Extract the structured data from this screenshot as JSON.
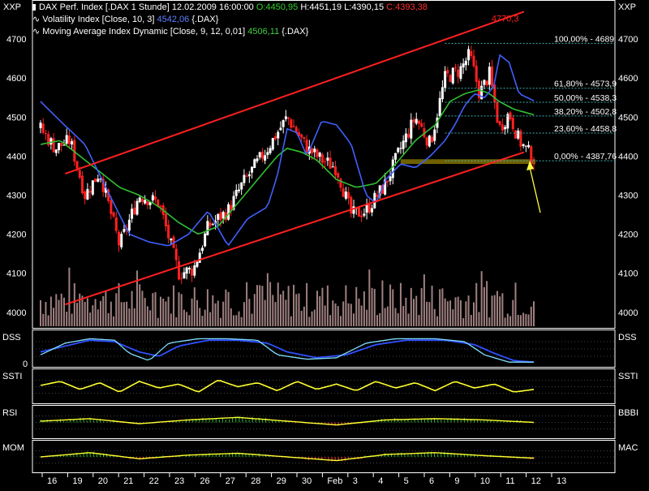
{
  "header": {
    "line1": {
      "instrument": "DAX Perf. Index [.DAX  1 Stunde]",
      "datetime": "12.02.2009 16:00:00",
      "open": "O:4450,95",
      "high": "H:4451,19",
      "low": "L:4390,15",
      "close": "C:4393,38"
    },
    "line2": {
      "label": "Volatility Index [Close, 10, 3]",
      "value": "4542,06",
      "suffix": "{.DAX}"
    },
    "line3": {
      "label": "Moving Average Index Dynamic [Close, 9, 12, 0,01]",
      "value": "4506,11",
      "suffix": "{.DAX}"
    }
  },
  "corner_labels": {
    "left": "XXP",
    "right": "XXP"
  },
  "colors": {
    "background": "#000000",
    "panel_border": "#ffffff",
    "up_candle": "#ffffff",
    "down_candle": "#ff2020",
    "channel": "#ff2020",
    "volatility": "#4060ff",
    "moving_average": "#30c030",
    "fib_line": "#40b0b0",
    "support_band": "#7a6a00",
    "arrow": "#ffff40",
    "volume": "#a08080"
  },
  "chart_data": [
    {
      "type": "candlestick",
      "name": "main",
      "ylim": [
        3960,
        4800
      ],
      "y_ticks": [
        4000,
        4100,
        4200,
        4300,
        4400,
        4500,
        4600,
        4700
      ],
      "tick_label_format": "integer",
      "x_tick_labels": [
        "16",
        "19",
        "20",
        "21",
        "22",
        "23",
        "26",
        "27",
        "28",
        "29",
        "30",
        "Feb",
        "3",
        "4",
        "5",
        "6",
        "9",
        "10",
        "11",
        "12",
        "13"
      ],
      "channel_label": "4770,3",
      "channel_upper": [
        [
          0.05,
          4355
        ],
        [
          0.98,
          4770
        ]
      ],
      "channel_lower": [
        [
          0.05,
          4020
        ],
        [
          0.98,
          4410
        ]
      ],
      "support_band": [
        4380,
        4392
      ],
      "fibonacci": [
        {
          "label": "100,00% - 4689",
          "value": 4689
        },
        {
          "label": "61,80% - 4573,9",
          "value": 4574
        },
        {
          "label": "50,00% - 4538,3",
          "value": 4538
        },
        {
          "label": "38,20% - 4502,8",
          "value": 4503
        },
        {
          "label": "23,60% - 4458,8",
          "value": 4459
        },
        {
          "label": "0,00% - 4387,76",
          "value": 4388
        }
      ],
      "close_anchors": [
        [
          0,
          4470
        ],
        [
          0.03,
          4420
        ],
        [
          0.06,
          4440
        ],
        [
          0.09,
          4300
        ],
        [
          0.12,
          4360
        ],
        [
          0.16,
          4170
        ],
        [
          0.2,
          4300
        ],
        [
          0.24,
          4280
        ],
        [
          0.28,
          4100
        ],
        [
          0.31,
          4110
        ],
        [
          0.34,
          4220
        ],
        [
          0.38,
          4260
        ],
        [
          0.41,
          4330
        ],
        [
          0.46,
          4420
        ],
        [
          0.5,
          4500
        ],
        [
          0.54,
          4420
        ],
        [
          0.57,
          4390
        ],
        [
          0.6,
          4370
        ],
        [
          0.63,
          4250
        ],
        [
          0.66,
          4260
        ],
        [
          0.7,
          4330
        ],
        [
          0.73,
          4420
        ],
        [
          0.76,
          4500
        ],
        [
          0.79,
          4430
        ],
        [
          0.82,
          4600
        ],
        [
          0.85,
          4620
        ],
        [
          0.87,
          4660
        ],
        [
          0.89,
          4560
        ],
        [
          0.91,
          4610
        ],
        [
          0.93,
          4470
        ],
        [
          0.95,
          4510
        ],
        [
          0.97,
          4440
        ],
        [
          1,
          4393
        ]
      ],
      "volatility_anchors": [
        [
          0,
          4540
        ],
        [
          0.04,
          4490
        ],
        [
          0.09,
          4430
        ],
        [
          0.14,
          4300
        ],
        [
          0.18,
          4200
        ],
        [
          0.22,
          4180
        ],
        [
          0.26,
          4170
        ],
        [
          0.3,
          4200
        ],
        [
          0.34,
          4260
        ],
        [
          0.38,
          4170
        ],
        [
          0.42,
          4240
        ],
        [
          0.46,
          4270
        ],
        [
          0.48,
          4350
        ],
        [
          0.5,
          4470
        ],
        [
          0.52,
          4460
        ],
        [
          0.54,
          4400
        ],
        [
          0.57,
          4490
        ],
        [
          0.6,
          4480
        ],
        [
          0.63,
          4430
        ],
        [
          0.66,
          4300
        ],
        [
          0.68,
          4280
        ],
        [
          0.7,
          4340
        ],
        [
          0.73,
          4380
        ],
        [
          0.76,
          4370
        ],
        [
          0.79,
          4400
        ],
        [
          0.82,
          4440
        ],
        [
          0.84,
          4480
        ],
        [
          0.86,
          4530
        ],
        [
          0.88,
          4560
        ],
        [
          0.9,
          4550
        ],
        [
          0.92,
          4580
        ],
        [
          0.93,
          4660
        ],
        [
          0.95,
          4640
        ],
        [
          0.97,
          4560
        ],
        [
          1,
          4542
        ]
      ],
      "ma_anchors": [
        [
          0,
          4430
        ],
        [
          0.04,
          4440
        ],
        [
          0.08,
          4400
        ],
        [
          0.12,
          4360
        ],
        [
          0.16,
          4320
        ],
        [
          0.2,
          4300
        ],
        [
          0.24,
          4270
        ],
        [
          0.28,
          4230
        ],
        [
          0.32,
          4200
        ],
        [
          0.36,
          4220
        ],
        [
          0.4,
          4280
        ],
        [
          0.44,
          4340
        ],
        [
          0.48,
          4400
        ],
        [
          0.5,
          4420
        ],
        [
          0.53,
          4410
        ],
        [
          0.56,
          4390
        ],
        [
          0.6,
          4340
        ],
        [
          0.64,
          4320
        ],
        [
          0.68,
          4330
        ],
        [
          0.72,
          4380
        ],
        [
          0.76,
          4440
        ],
        [
          0.8,
          4480
        ],
        [
          0.83,
          4540
        ],
        [
          0.86,
          4560
        ],
        [
          0.89,
          4570
        ],
        [
          0.91,
          4560
        ],
        [
          0.93,
          4540
        ],
        [
          0.96,
          4520
        ],
        [
          1,
          4506
        ]
      ]
    },
    {
      "type": "line",
      "name": "DSS",
      "left_label": "DSS",
      "right_label": "DSS",
      "ylim": [
        0,
        100
      ],
      "y_ticks": [
        0
      ],
      "line_a": [
        [
          0,
          30
        ],
        [
          0.05,
          70
        ],
        [
          0.1,
          85
        ],
        [
          0.15,
          80
        ],
        [
          0.18,
          35
        ],
        [
          0.22,
          10
        ],
        [
          0.26,
          70
        ],
        [
          0.32,
          85
        ],
        [
          0.38,
          85
        ],
        [
          0.44,
          80
        ],
        [
          0.48,
          30
        ],
        [
          0.54,
          15
        ],
        [
          0.6,
          20
        ],
        [
          0.66,
          70
        ],
        [
          0.72,
          85
        ],
        [
          0.8,
          85
        ],
        [
          0.86,
          75
        ],
        [
          0.9,
          30
        ],
        [
          0.95,
          5
        ],
        [
          1,
          5
        ]
      ],
      "line_b": [
        [
          0,
          40
        ],
        [
          0.05,
          60
        ],
        [
          0.1,
          80
        ],
        [
          0.15,
          75
        ],
        [
          0.2,
          40
        ],
        [
          0.24,
          25
        ],
        [
          0.28,
          60
        ],
        [
          0.34,
          80
        ],
        [
          0.4,
          80
        ],
        [
          0.46,
          70
        ],
        [
          0.5,
          40
        ],
        [
          0.56,
          20
        ],
        [
          0.62,
          30
        ],
        [
          0.68,
          65
        ],
        [
          0.74,
          80
        ],
        [
          0.82,
          80
        ],
        [
          0.88,
          65
        ],
        [
          0.92,
          35
        ],
        [
          0.96,
          10
        ],
        [
          1,
          5
        ]
      ]
    },
    {
      "type": "line",
      "name": "SSTI",
      "left_label": "SSTI",
      "right_label": "SSTI",
      "ylim": [
        0,
        100
      ],
      "line": [
        [
          0,
          55
        ],
        [
          0.04,
          70
        ],
        [
          0.08,
          40
        ],
        [
          0.12,
          65
        ],
        [
          0.16,
          30
        ],
        [
          0.2,
          70
        ],
        [
          0.24,
          45
        ],
        [
          0.28,
          60
        ],
        [
          0.32,
          30
        ],
        [
          0.36,
          75
        ],
        [
          0.4,
          50
        ],
        [
          0.44,
          65
        ],
        [
          0.48,
          35
        ],
        [
          0.52,
          70
        ],
        [
          0.56,
          40
        ],
        [
          0.6,
          60
        ],
        [
          0.64,
          35
        ],
        [
          0.68,
          70
        ],
        [
          0.72,
          45
        ],
        [
          0.76,
          65
        ],
        [
          0.8,
          35
        ],
        [
          0.84,
          70
        ],
        [
          0.88,
          45
        ],
        [
          0.92,
          60
        ],
        [
          0.96,
          30
        ],
        [
          1,
          40
        ]
      ]
    },
    {
      "type": "bar",
      "name": "RSI",
      "left_label": "RSI",
      "right_label": "BBBI",
      "ylim": [
        -1,
        1
      ],
      "line": [
        [
          0,
          0.1
        ],
        [
          0.1,
          0.3
        ],
        [
          0.2,
          -0.1
        ],
        [
          0.3,
          0.2
        ],
        [
          0.4,
          0.4
        ],
        [
          0.5,
          0.1
        ],
        [
          0.6,
          -0.2
        ],
        [
          0.7,
          0.2
        ],
        [
          0.8,
          0.3
        ],
        [
          0.9,
          0.2
        ],
        [
          1,
          0
        ]
      ]
    },
    {
      "type": "bar",
      "name": "MOM",
      "left_label": "MOM",
      "right_label": "MAC",
      "ylim": [
        -1,
        1
      ],
      "line": [
        [
          0,
          0
        ],
        [
          0.1,
          0.35
        ],
        [
          0.2,
          -0.15
        ],
        [
          0.3,
          0.15
        ],
        [
          0.4,
          0.3
        ],
        [
          0.5,
          0
        ],
        [
          0.6,
          -0.3
        ],
        [
          0.7,
          0.2
        ],
        [
          0.8,
          0.35
        ],
        [
          0.9,
          0.1
        ],
        [
          1,
          -0.1
        ]
      ]
    }
  ]
}
